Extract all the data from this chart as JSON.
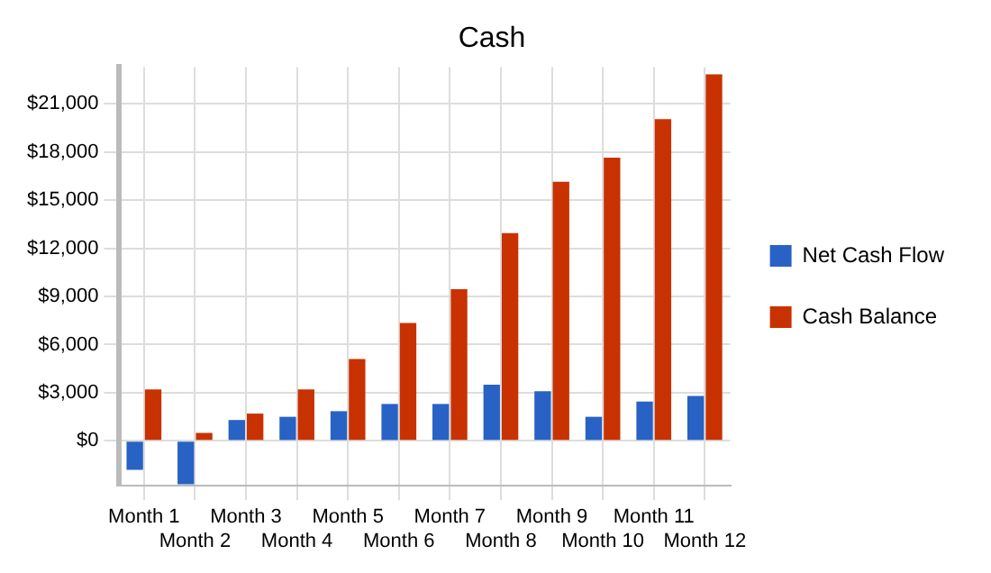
{
  "chart_data": {
    "type": "bar",
    "title": "Cash",
    "categories": [
      "Month 1",
      "Month 2",
      "Month 3",
      "Month 4",
      "Month 5",
      "Month 6",
      "Month 7",
      "Month 8",
      "Month 9",
      "Month 10",
      "Month 11",
      "Month 12"
    ],
    "series": [
      {
        "name": "Net Cash Flow",
        "color": "#2862c4",
        "values": [
          -1800,
          -2700,
          1300,
          1500,
          1850,
          2300,
          2300,
          3500,
          3100,
          1500,
          2450,
          2800
        ]
      },
      {
        "name": "Cash Balance",
        "color": "#c83200",
        "values": [
          3200,
          500,
          1700,
          3200,
          5100,
          7350,
          9450,
          12950,
          16150,
          17650,
          20050,
          22850
        ]
      }
    ],
    "ylim": [
      -2800,
      23300
    ],
    "yticks": [
      {
        "value": 0,
        "label": "$0"
      },
      {
        "value": 3000,
        "label": "$3,000"
      },
      {
        "value": 6000,
        "label": "$6,000"
      },
      {
        "value": 9000,
        "label": "$9,000"
      },
      {
        "value": 12000,
        "label": "$12,000"
      },
      {
        "value": 15000,
        "label": "$15,000"
      },
      {
        "value": 18000,
        "label": "$18,000"
      },
      {
        "value": 21000,
        "label": "$21,000"
      }
    ],
    "grid": true,
    "legend": "right"
  }
}
